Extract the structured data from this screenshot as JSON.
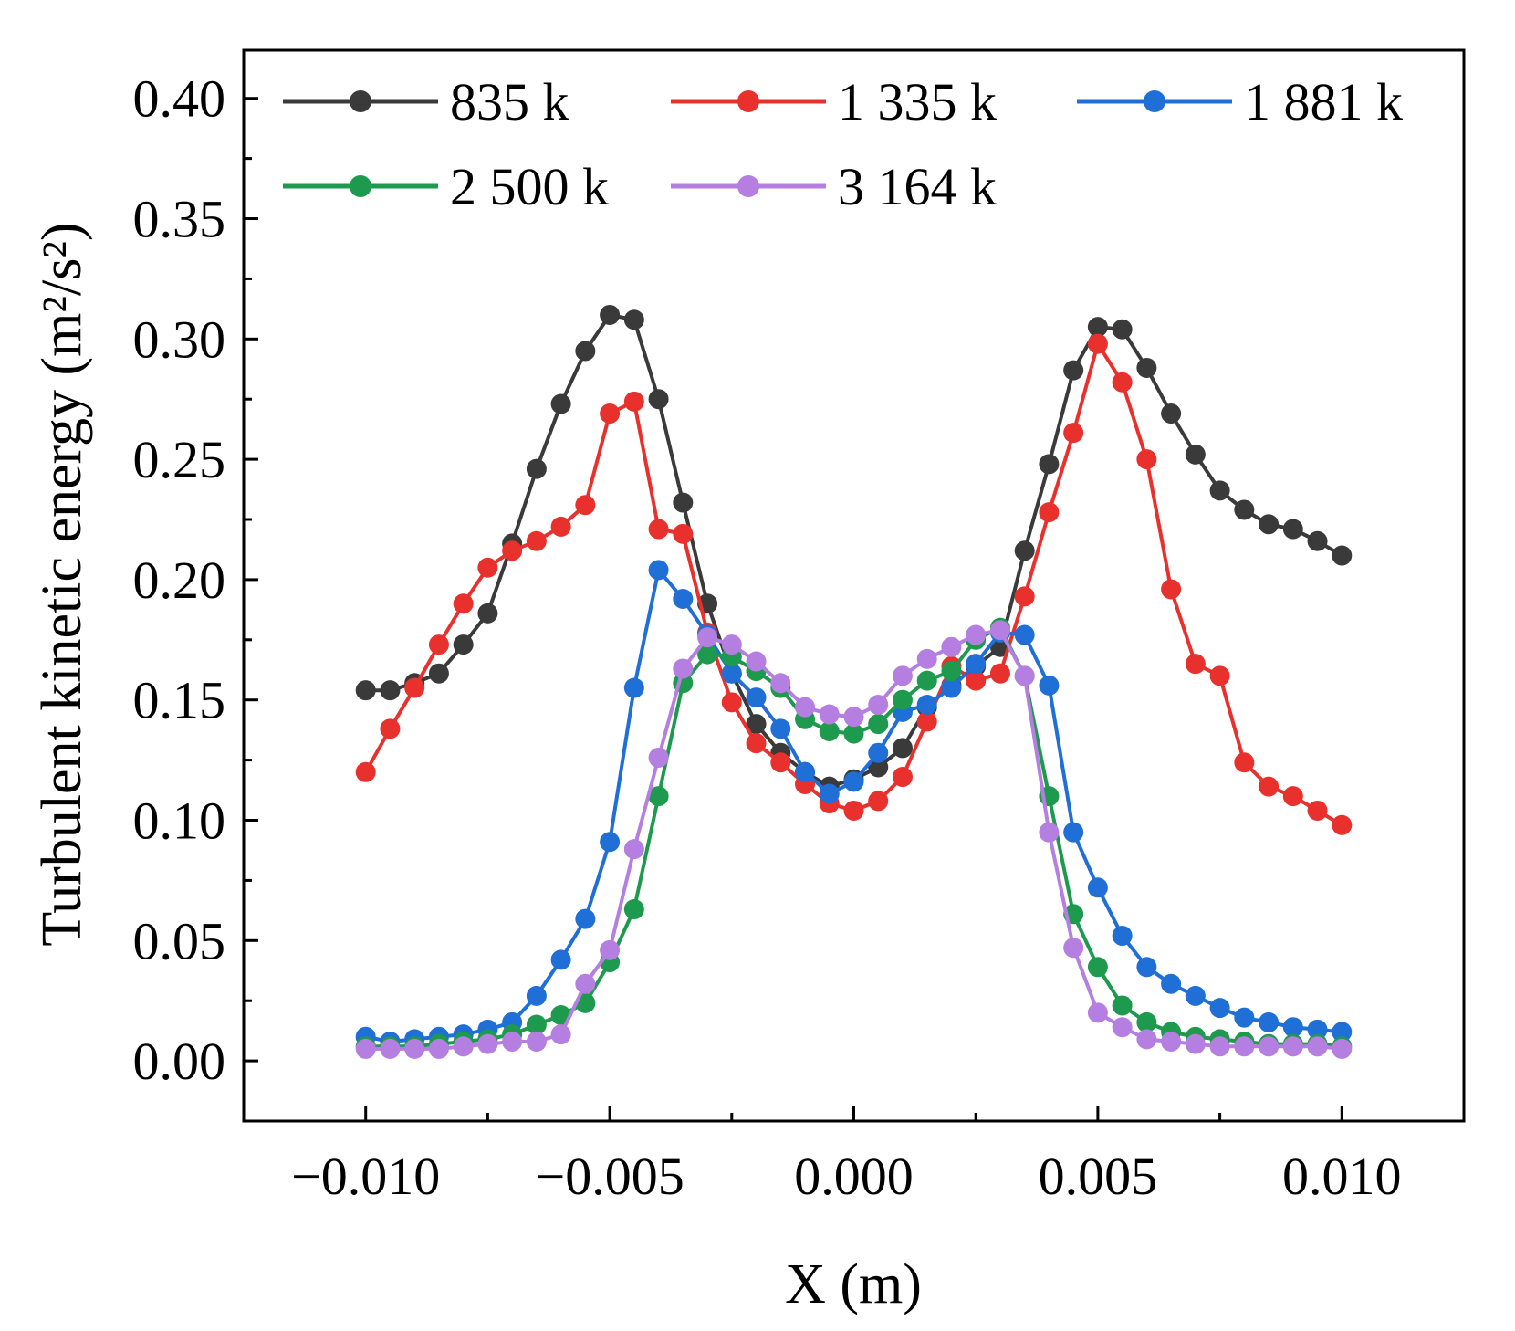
{
  "chart_data": {
    "type": "line",
    "xlabel": "X (m)",
    "ylabel": "Turbulent kinetic energy (m²/s²)",
    "xlim": [
      -0.0125,
      0.0125
    ],
    "ylim": [
      -0.025,
      0.42
    ],
    "xticks": [
      -0.01,
      -0.005,
      0.0,
      0.005,
      0.01
    ],
    "xtick_labels": [
      "−0.010",
      "−0.005",
      "0.000",
      "0.005",
      "0.010"
    ],
    "yticks": [
      0.0,
      0.05,
      0.1,
      0.15,
      0.2,
      0.25,
      0.3,
      0.35,
      0.4
    ],
    "ytick_labels": [
      "0.00",
      "0.05",
      "0.10",
      "0.15",
      "0.20",
      "0.25",
      "0.30",
      "0.35",
      "0.40"
    ],
    "grid": false,
    "legend_position": "top",
    "x": [
      -0.01,
      -0.0095,
      -0.009,
      -0.0085,
      -0.008,
      -0.0075,
      -0.007,
      -0.0065,
      -0.006,
      -0.0055,
      -0.005,
      -0.0045,
      -0.004,
      -0.0035,
      -0.003,
      -0.0025,
      -0.002,
      -0.0015,
      -0.001,
      -0.0005,
      0.0,
      0.0005,
      0.001,
      0.0015,
      0.002,
      0.0025,
      0.003,
      0.0035,
      0.004,
      0.0045,
      0.005,
      0.0055,
      0.006,
      0.0065,
      0.007,
      0.0075,
      0.008,
      0.0085,
      0.009,
      0.0095,
      0.01
    ],
    "series": [
      {
        "name": "835 k",
        "color": "#3a3a3a",
        "values": [
          0.154,
          0.154,
          0.157,
          0.161,
          0.173,
          0.186,
          0.215,
          0.246,
          0.273,
          0.295,
          0.31,
          0.308,
          0.275,
          0.232,
          0.19,
          0.161,
          0.14,
          0.128,
          0.12,
          0.114,
          0.117,
          0.122,
          0.13,
          0.147,
          0.156,
          0.164,
          0.172,
          0.212,
          0.248,
          0.287,
          0.305,
          0.304,
          0.288,
          0.269,
          0.252,
          0.237,
          0.229,
          0.223,
          0.221,
          0.216,
          0.21
        ]
      },
      {
        "name": "1 335 k",
        "color": "#e8312d",
        "values": [
          0.12,
          0.138,
          0.155,
          0.173,
          0.19,
          0.205,
          0.212,
          0.216,
          0.222,
          0.231,
          0.269,
          0.274,
          0.221,
          0.219,
          0.178,
          0.149,
          0.132,
          0.124,
          0.115,
          0.107,
          0.104,
          0.108,
          0.118,
          0.141,
          0.164,
          0.158,
          0.161,
          0.193,
          0.228,
          0.261,
          0.298,
          0.282,
          0.25,
          0.196,
          0.165,
          0.16,
          0.124,
          0.114,
          0.11,
          0.104,
          0.098
        ]
      },
      {
        "name": "1 881 k",
        "color": "#1f6fd6",
        "values": [
          0.01,
          0.008,
          0.009,
          0.01,
          0.011,
          0.013,
          0.016,
          0.027,
          0.042,
          0.059,
          0.091,
          0.155,
          0.204,
          0.192,
          0.177,
          0.161,
          0.151,
          0.138,
          0.12,
          0.111,
          0.116,
          0.128,
          0.145,
          0.148,
          0.155,
          0.165,
          0.178,
          0.177,
          0.156,
          0.095,
          0.072,
          0.052,
          0.039,
          0.032,
          0.027,
          0.022,
          0.018,
          0.016,
          0.014,
          0.013,
          0.012
        ]
      },
      {
        "name": "2 500 k",
        "color": "#1e9a4e",
        "values": [
          0.006,
          0.006,
          0.006,
          0.007,
          0.008,
          0.009,
          0.011,
          0.015,
          0.019,
          0.024,
          0.041,
          0.063,
          0.11,
          0.157,
          0.169,
          0.168,
          0.162,
          0.155,
          0.142,
          0.137,
          0.136,
          0.14,
          0.15,
          0.158,
          0.162,
          0.175,
          0.18,
          0.16,
          0.11,
          0.061,
          0.039,
          0.023,
          0.016,
          0.012,
          0.01,
          0.009,
          0.008,
          0.007,
          0.007,
          0.007,
          0.006
        ]
      },
      {
        "name": "3 164 k",
        "color": "#b47fe0",
        "values": [
          0.005,
          0.005,
          0.005,
          0.005,
          0.006,
          0.007,
          0.008,
          0.008,
          0.011,
          0.032,
          0.046,
          0.088,
          0.126,
          0.163,
          0.176,
          0.173,
          0.166,
          0.157,
          0.147,
          0.144,
          0.143,
          0.148,
          0.16,
          0.167,
          0.172,
          0.177,
          0.179,
          0.16,
          0.095,
          0.047,
          0.02,
          0.014,
          0.009,
          0.008,
          0.007,
          0.006,
          0.006,
          0.006,
          0.006,
          0.006,
          0.005
        ]
      }
    ]
  }
}
